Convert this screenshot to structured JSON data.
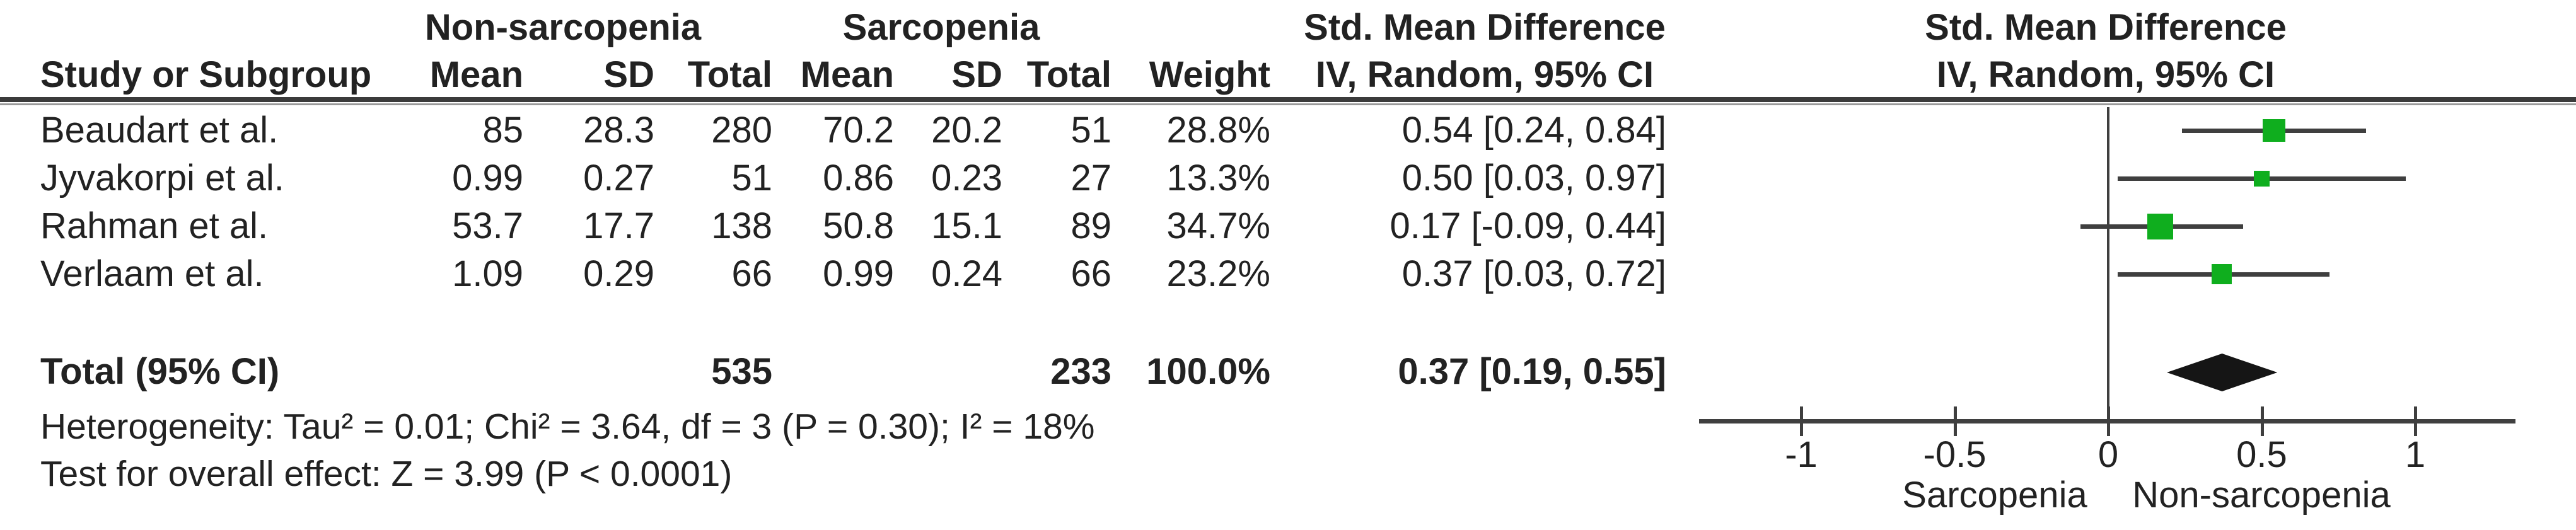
{
  "table": {
    "group_headers": [
      "Non-sarcopenia",
      "Sarcopenia"
    ],
    "effect_col_header": {
      "line1": "Std. Mean Difference",
      "line2": "IV, Random, 95% CI"
    },
    "plot_col_header": {
      "line1": "Std. Mean Difference",
      "line2": "IV, Random, 95% CI"
    },
    "columns": [
      "Study or Subgroup",
      "Mean",
      "SD",
      "Total",
      "Mean",
      "SD",
      "Total",
      "Weight"
    ],
    "rows": [
      {
        "study": "Beaudart et al.",
        "mean1": "85",
        "sd1": "28.3",
        "total1": "280",
        "mean2": "70.2",
        "sd2": "20.2",
        "total2": "51",
        "weight": "28.8%",
        "effect": "0.54 [0.24, 0.84]"
      },
      {
        "study": "Jyvakorpi et al.",
        "mean1": "0.99",
        "sd1": "0.27",
        "total1": "51",
        "mean2": "0.86",
        "sd2": "0.23",
        "total2": "27",
        "weight": "13.3%",
        "effect": "0.50 [0.03, 0.97]"
      },
      {
        "study": "Rahman et al.",
        "mean1": "53.7",
        "sd1": "17.7",
        "total1": "138",
        "mean2": "50.8",
        "sd2": "15.1",
        "total2": "89",
        "weight": "34.7%",
        "effect": "0.17 [-0.09, 0.44]"
      },
      {
        "study": "Verlaam et al.",
        "mean1": "1.09",
        "sd1": "0.29",
        "total1": "66",
        "mean2": "0.99",
        "sd2": "0.24",
        "total2": "66",
        "weight": "23.2%",
        "effect": "0.37 [0.03, 0.72]"
      }
    ],
    "total_row": {
      "label": "Total (95% CI)",
      "total1": "535",
      "total2": "233",
      "weight": "100.0%",
      "effect": "0.37 [0.19, 0.55]"
    },
    "footer": [
      "Heterogeneity: Tau² = 0.01; Chi² = 3.64, df = 3 (P = 0.30); I² = 18%",
      "Test for overall effect: Z = 3.99 (P < 0.0001)"
    ]
  },
  "chart_data": {
    "type": "forest",
    "effect_measure": "Std. Mean Difference",
    "model": "IV, Random, 95% CI",
    "studies": [
      {
        "name": "Beaudart et al.",
        "smd": 0.54,
        "ci_low": 0.24,
        "ci_high": 0.84,
        "weight_pct": 28.8
      },
      {
        "name": "Jyvakorpi et al.",
        "smd": 0.5,
        "ci_low": 0.03,
        "ci_high": 0.97,
        "weight_pct": 13.3
      },
      {
        "name": "Rahman et al.",
        "smd": 0.17,
        "ci_low": -0.09,
        "ci_high": 0.44,
        "weight_pct": 34.7
      },
      {
        "name": "Verlaam et al.",
        "smd": 0.37,
        "ci_low": 0.03,
        "ci_high": 0.72,
        "weight_pct": 23.2
      }
    ],
    "overall": {
      "label": "Total (95% CI)",
      "smd": 0.37,
      "ci_low": 0.19,
      "ci_high": 0.55
    },
    "x_axis": {
      "ticks": [
        -1,
        -0.5,
        0,
        0.5,
        1
      ],
      "tick_labels": [
        "-1",
        "-0.5",
        "0",
        "0.5",
        "1"
      ],
      "range": [
        -1.33,
        1.33
      ],
      "left_label": "Sarcopenia",
      "right_label": "Non-sarcopenia",
      "grid": false
    },
    "colors": {
      "marker": "#0fae1e",
      "line": "#3f3f3f",
      "diamond": "#151515",
      "text": "#222222"
    }
  }
}
